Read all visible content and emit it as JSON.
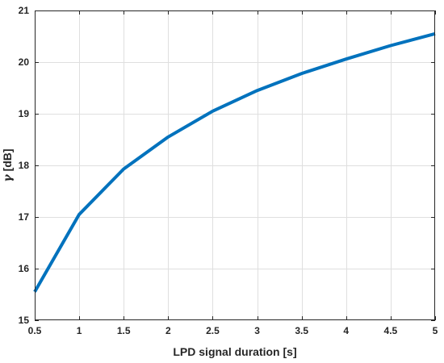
{
  "chart_data": {
    "type": "line",
    "xlabel": "LPD signal duration [s]",
    "ylabel_symbol": "γ",
    "ylabel_unit": "[dB]",
    "xlim": [
      0.5,
      5
    ],
    "ylim": [
      15,
      21
    ],
    "xticks": [
      "0.5",
      "1",
      "1.5",
      "2",
      "2.5",
      "3",
      "3.5",
      "4",
      "4.5",
      "5"
    ],
    "yticks": [
      "15",
      "16",
      "17",
      "18",
      "19",
      "20",
      "21"
    ],
    "grid": true,
    "series": [
      {
        "color": "#0072bd",
        "x": [
          0.5,
          1,
          1.5,
          2,
          2.5,
          3,
          3.5,
          4,
          4.5,
          5
        ],
        "y": [
          15.55,
          17.05,
          17.93,
          18.55,
          19.05,
          19.45,
          19.78,
          20.06,
          20.32,
          20.55
        ]
      }
    ]
  }
}
